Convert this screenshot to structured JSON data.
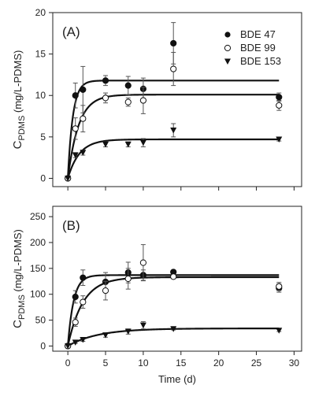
{
  "chart_data": [
    {
      "type": "scatter",
      "panel_label": "(A)",
      "xlabel": "",
      "ylabel": "C_PDMS (mg/L-PDMS)",
      "ylabel_main": "C",
      "ylabel_sub": "PDMS",
      "ylabel_rest": " (mg/L-PDMS)",
      "xlim": [
        -2,
        31
      ],
      "ylim": [
        -1,
        20
      ],
      "xticks": [
        0,
        5,
        10,
        15,
        20,
        25,
        30
      ],
      "yticks": [
        0,
        5,
        10,
        15,
        20
      ],
      "legend_position": "top-right",
      "series": [
        {
          "name": "BDE 47",
          "marker": "filled-circle",
          "points": [
            {
              "x": 0,
              "y": 0,
              "err": 0
            },
            {
              "x": 1,
              "y": 10,
              "err": 1.5
            },
            {
              "x": 2,
              "y": 10.7,
              "err": 2.8
            },
            {
              "x": 5,
              "y": 11.8,
              "err": 0.6
            },
            {
              "x": 8,
              "y": 11.2,
              "err": 1.1
            },
            {
              "x": 10,
              "y": 10.8,
              "err": 1.3
            },
            {
              "x": 14,
              "y": 16.3,
              "err": 2.5
            },
            {
              "x": 28,
              "y": 9.8,
              "err": 0.5
            }
          ],
          "fit": {
            "plateau": 11.8,
            "k": 1.5
          }
        },
        {
          "name": "BDE 99",
          "marker": "open-circle",
          "points": [
            {
              "x": 0,
              "y": 0,
              "err": 0
            },
            {
              "x": 1,
              "y": 6,
              "err": 1.3
            },
            {
              "x": 2,
              "y": 7.2,
              "err": 1.6
            },
            {
              "x": 5,
              "y": 9.7,
              "err": 0.6
            },
            {
              "x": 8,
              "y": 9.2,
              "err": 0.5
            },
            {
              "x": 10,
              "y": 9.4,
              "err": 1.6
            },
            {
              "x": 14,
              "y": 13.2,
              "err": 2.0
            },
            {
              "x": 28,
              "y": 8.8,
              "err": 0.6
            }
          ],
          "fit": {
            "plateau": 10.1,
            "k": 0.7
          }
        },
        {
          "name": "BDE 153",
          "marker": "filled-triangle-down",
          "points": [
            {
              "x": 0,
              "y": 0,
              "err": 0
            },
            {
              "x": 1,
              "y": 2.8,
              "err": 0.3
            },
            {
              "x": 2,
              "y": 3.1,
              "err": 0.3
            },
            {
              "x": 5,
              "y": 4.1,
              "err": 0.3
            },
            {
              "x": 8,
              "y": 4.1,
              "err": 0.3
            },
            {
              "x": 10,
              "y": 4.3,
              "err": 0.5
            },
            {
              "x": 14,
              "y": 5.8,
              "err": 0.8
            },
            {
              "x": 28,
              "y": 4.7,
              "err": 0.2
            }
          ],
          "fit": {
            "plateau": 4.7,
            "k": 0.65
          }
        }
      ]
    },
    {
      "type": "scatter",
      "panel_label": "(B)",
      "xlabel": "Time (d)",
      "ylabel": "C_PDMS (mg/L-PDMS)",
      "ylabel_main": "C",
      "ylabel_sub": "PDMS",
      "ylabel_rest": " (mg/L-PDMS)",
      "xlim": [
        -2,
        31
      ],
      "ylim": [
        -10,
        270
      ],
      "xticks": [
        0,
        5,
        10,
        15,
        20,
        25,
        30
      ],
      "yticks": [
        0,
        50,
        100,
        150,
        200,
        250
      ],
      "series": [
        {
          "name": "BDE 47",
          "marker": "filled-circle",
          "points": [
            {
              "x": 0,
              "y": 0,
              "err": 0
            },
            {
              "x": 1,
              "y": 95,
              "err": 12
            },
            {
              "x": 2,
              "y": 132,
              "err": 15
            },
            {
              "x": 5,
              "y": 124,
              "err": 18
            },
            {
              "x": 8,
              "y": 142,
              "err": 20
            },
            {
              "x": 10,
              "y": 137,
              "err": 10
            },
            {
              "x": 14,
              "y": 143,
              "err": 3
            },
            {
              "x": 28,
              "y": 112,
              "err": 8
            }
          ],
          "fit": {
            "plateau": 137,
            "k": 1.3
          }
        },
        {
          "name": "BDE 99",
          "marker": "open-circle",
          "points": [
            {
              "x": 0,
              "y": 0,
              "err": 0
            },
            {
              "x": 1,
              "y": 46,
              "err": 8
            },
            {
              "x": 2,
              "y": 85,
              "err": 12
            },
            {
              "x": 5,
              "y": 107,
              "err": 18
            },
            {
              "x": 8,
              "y": 130,
              "err": 20
            },
            {
              "x": 10,
              "y": 161,
              "err": 35
            },
            {
              "x": 14,
              "y": 134,
              "err": 4
            },
            {
              "x": 28,
              "y": 115,
              "err": 8
            }
          ],
          "fit": {
            "plateau": 133,
            "k": 0.5
          }
        },
        {
          "name": "BDE 153",
          "marker": "filled-triangle-down",
          "points": [
            {
              "x": 0,
              "y": 0,
              "err": 0
            },
            {
              "x": 1,
              "y": 7,
              "err": 2
            },
            {
              "x": 2,
              "y": 12,
              "err": 3
            },
            {
              "x": 5,
              "y": 21,
              "err": 4
            },
            {
              "x": 8,
              "y": 28,
              "err": 5
            },
            {
              "x": 10,
              "y": 40,
              "err": 7
            },
            {
              "x": 14,
              "y": 33,
              "err": 2
            },
            {
              "x": 28,
              "y": 30,
              "err": 2
            }
          ],
          "fit": {
            "plateau": 34,
            "k": 0.25
          }
        }
      ]
    }
  ]
}
